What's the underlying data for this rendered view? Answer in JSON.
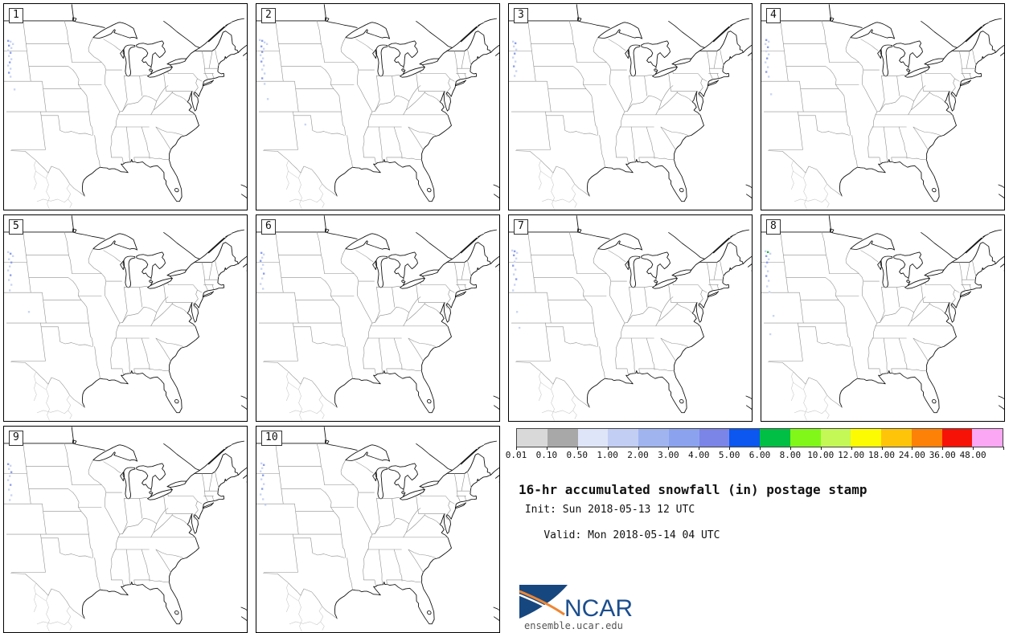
{
  "figure": {
    "title": "16-hr accumulated snowfall (in) postage stamp",
    "init_line": " Init: Sun 2018-05-13 12 UTC",
    "valid_line": "Valid: Mon 2018-05-14 04 UTC"
  },
  "logo": {
    "name": "NCAR",
    "url_text": "ensemble.ucar.edu",
    "navy": "#1b4e8e",
    "orange": "#ef8632"
  },
  "colorbar": {
    "units": "in",
    "ticks": [
      "0.01",
      "0.10",
      "0.50",
      "1.00",
      "2.00",
      "3.00",
      "4.00",
      "5.00",
      "6.00",
      "8.00",
      "10.00",
      "12.00",
      "18.00",
      "24.00",
      "36.00",
      "48.00"
    ],
    "colors": [
      "#d9d9d9",
      "#a8a8a8",
      "#dee5f8",
      "#c2cef3",
      "#a0b5f0",
      "#8ba3ee",
      "#7b85e8",
      "#0b57f0",
      "#00bf44",
      "#80f718",
      "#c4f856",
      "#fdfb02",
      "#fec40a",
      "#fd8106",
      "#f61207",
      "#fba7f4"
    ]
  },
  "speck_colors": [
    "#c9d4f3",
    "#8d9fe9",
    "#6b7fe0",
    "#2eb34f"
  ],
  "panels": [
    {
      "label": "1",
      "specks": [
        [
          4,
          45,
          1
        ],
        [
          7,
          46,
          0
        ],
        [
          10,
          49,
          0
        ],
        [
          5,
          51,
          1
        ],
        [
          8,
          54,
          0
        ],
        [
          4,
          57,
          0
        ],
        [
          7,
          60,
          1
        ],
        [
          5,
          64,
          0
        ],
        [
          8,
          68,
          0
        ],
        [
          6,
          72,
          1
        ],
        [
          4,
          76,
          0
        ],
        [
          7,
          80,
          0
        ],
        [
          5,
          85,
          1
        ],
        [
          7,
          90,
          0
        ],
        [
          12,
          106,
          0
        ]
      ]
    },
    {
      "label": "2",
      "specks": [
        [
          3,
          44,
          0
        ],
        [
          6,
          45,
          1
        ],
        [
          9,
          47,
          0
        ],
        [
          12,
          49,
          0
        ],
        [
          5,
          52,
          1
        ],
        [
          8,
          55,
          0
        ],
        [
          6,
          59,
          1
        ],
        [
          4,
          63,
          0
        ],
        [
          7,
          67,
          0
        ],
        [
          5,
          71,
          1
        ],
        [
          8,
          76,
          0
        ],
        [
          6,
          81,
          0
        ],
        [
          9,
          86,
          0
        ],
        [
          6,
          92,
          1
        ],
        [
          9,
          99,
          0
        ],
        [
          13,
          118,
          0
        ],
        [
          60,
          150,
          0
        ]
      ]
    },
    {
      "label": "3",
      "specks": [
        [
          4,
          46,
          0
        ],
        [
          7,
          48,
          1
        ],
        [
          5,
          52,
          0
        ],
        [
          8,
          56,
          0
        ],
        [
          6,
          61,
          1
        ],
        [
          4,
          66,
          0
        ],
        [
          7,
          71,
          0
        ],
        [
          5,
          77,
          1
        ],
        [
          8,
          83,
          0
        ],
        [
          6,
          89,
          0
        ]
      ]
    },
    {
      "label": "4",
      "specks": [
        [
          5,
          44,
          1
        ],
        [
          8,
          46,
          0
        ],
        [
          4,
          49,
          0
        ],
        [
          7,
          53,
          1
        ],
        [
          5,
          58,
          0
        ],
        [
          8,
          62,
          0
        ],
        [
          6,
          67,
          1
        ],
        [
          4,
          72,
          0
        ],
        [
          7,
          78,
          0
        ],
        [
          5,
          84,
          1
        ],
        [
          8,
          90,
          0
        ],
        [
          11,
          112,
          0
        ]
      ]
    },
    {
      "label": "5",
      "specks": [
        [
          4,
          45,
          0
        ],
        [
          7,
          47,
          1
        ],
        [
          10,
          50,
          0
        ],
        [
          5,
          54,
          0
        ],
        [
          8,
          58,
          1
        ],
        [
          6,
          63,
          0
        ],
        [
          4,
          68,
          0
        ],
        [
          7,
          74,
          1
        ],
        [
          5,
          80,
          0
        ],
        [
          8,
          86,
          0
        ],
        [
          6,
          93,
          0
        ],
        [
          30,
          120,
          0
        ]
      ]
    },
    {
      "label": "6",
      "specks": [
        [
          5,
          46,
          1
        ],
        [
          8,
          48,
          0
        ],
        [
          6,
          52,
          0
        ],
        [
          4,
          56,
          1
        ],
        [
          7,
          61,
          0
        ],
        [
          5,
          66,
          0
        ],
        [
          8,
          72,
          1
        ],
        [
          6,
          78,
          0
        ],
        [
          4,
          85,
          0
        ],
        [
          7,
          91,
          0
        ]
      ]
    },
    {
      "label": "7",
      "specks": [
        [
          3,
          43,
          0
        ],
        [
          6,
          44,
          1
        ],
        [
          9,
          46,
          0
        ],
        [
          5,
          49,
          1
        ],
        [
          8,
          53,
          0
        ],
        [
          6,
          57,
          0
        ],
        [
          4,
          62,
          1
        ],
        [
          7,
          67,
          0
        ],
        [
          5,
          73,
          0
        ],
        [
          8,
          79,
          1
        ],
        [
          6,
          86,
          0
        ],
        [
          4,
          93,
          0
        ],
        [
          9,
          120,
          0
        ],
        [
          12,
          140,
          0
        ]
      ]
    },
    {
      "label": "8",
      "specks": [
        [
          4,
          44,
          0
        ],
        [
          7,
          45,
          3
        ],
        [
          10,
          47,
          0
        ],
        [
          5,
          50,
          1
        ],
        [
          8,
          54,
          0
        ],
        [
          6,
          58,
          1
        ],
        [
          4,
          63,
          0
        ],
        [
          7,
          69,
          0
        ],
        [
          5,
          75,
          1
        ],
        [
          8,
          81,
          0
        ],
        [
          6,
          88,
          0
        ],
        [
          9,
          95,
          0
        ],
        [
          14,
          125,
          0
        ],
        [
          10,
          148,
          0
        ]
      ]
    },
    {
      "label": "9",
      "specks": [
        [
          4,
          46,
          1
        ],
        [
          7,
          48,
          0
        ],
        [
          5,
          52,
          0
        ],
        [
          8,
          56,
          1
        ],
        [
          6,
          61,
          0
        ],
        [
          4,
          66,
          0
        ],
        [
          7,
          72,
          1
        ],
        [
          5,
          78,
          0
        ],
        [
          8,
          85,
          0
        ],
        [
          6,
          91,
          0
        ]
      ]
    },
    {
      "label": "10",
      "specks": [
        [
          5,
          45,
          0
        ],
        [
          8,
          47,
          1
        ],
        [
          6,
          51,
          0
        ],
        [
          4,
          55,
          0
        ],
        [
          7,
          60,
          1
        ],
        [
          5,
          65,
          0
        ],
        [
          8,
          71,
          0
        ],
        [
          6,
          77,
          1
        ],
        [
          4,
          84,
          0
        ],
        [
          7,
          90,
          0
        ],
        [
          10,
          97,
          0
        ]
      ]
    }
  ]
}
